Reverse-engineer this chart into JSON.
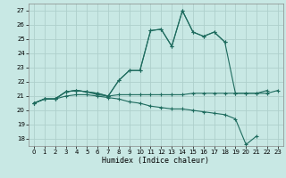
{
  "xlabel": "Humidex (Indice chaleur)",
  "bg_color": "#c8e8e4",
  "outer_color": "#c8e8e4",
  "grid_color": "#aed0cc",
  "line_color": "#1e6b5e",
  "xlim": [
    -0.5,
    23.5
  ],
  "ylim": [
    17.5,
    27.5
  ],
  "yticks": [
    18,
    19,
    20,
    21,
    22,
    23,
    24,
    25,
    26,
    27
  ],
  "xticks": [
    0,
    1,
    2,
    3,
    4,
    5,
    6,
    7,
    8,
    9,
    10,
    11,
    12,
    13,
    14,
    15,
    16,
    17,
    18,
    19,
    20,
    21,
    22,
    23
  ],
  "series": [
    [
      20.5,
      20.8,
      20.8,
      21.3,
      21.4,
      21.3,
      21.1,
      21.0,
      21.1,
      21.1,
      21.1,
      21.1,
      21.1,
      21.1,
      21.1,
      21.2,
      21.2,
      21.2,
      21.2,
      21.2,
      21.2,
      21.2,
      21.2,
      21.4
    ],
    [
      20.5,
      20.8,
      20.8,
      21.3,
      21.4,
      21.3,
      21.2,
      21.0,
      22.1,
      22.8,
      22.8,
      25.6,
      25.7,
      24.5,
      27.0,
      25.5,
      25.2,
      25.5,
      24.8,
      null,
      null,
      null,
      null,
      null
    ],
    [
      20.5,
      20.8,
      20.8,
      21.0,
      21.1,
      21.1,
      21.0,
      20.9,
      20.8,
      20.6,
      20.5,
      20.3,
      20.2,
      20.1,
      20.1,
      20.0,
      19.9,
      19.8,
      19.7,
      19.4,
      17.6,
      18.2,
      null,
      null
    ],
    [
      20.5,
      20.8,
      20.8,
      21.3,
      21.4,
      21.3,
      21.2,
      21.0,
      22.1,
      22.8,
      22.8,
      25.6,
      25.7,
      24.5,
      27.0,
      25.5,
      25.2,
      25.5,
      24.8,
      21.2,
      21.2,
      21.2,
      21.4,
      null
    ]
  ]
}
